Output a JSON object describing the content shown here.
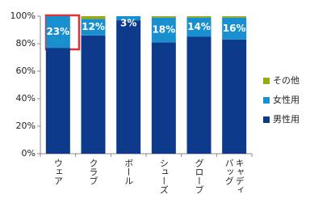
{
  "chart_data": {
    "type": "stacked_bar",
    "categories": [
      "ウェア",
      "クラブ",
      "ボール",
      "シューズ",
      "グローブ",
      "キャディバッグ"
    ],
    "series": [
      {
        "name": "男性用",
        "color": "#0d3a8a",
        "values": [
          77,
          86,
          97,
          81,
          85,
          83
        ]
      },
      {
        "name": "女性用",
        "color": "#1a8fd0",
        "values": [
          23,
          12,
          3,
          18,
          14,
          16
        ],
        "value_labels": [
          "23%",
          "12%",
          "3%",
          "18%",
          "14%",
          "16%"
        ]
      },
      {
        "name": "その他",
        "color": "#99aa11",
        "values": [
          0,
          2,
          0,
          1,
          1,
          1
        ]
      }
    ],
    "ylim": [
      0,
      100
    ],
    "yticks": [
      {
        "value": 0,
        "label": "0%"
      },
      {
        "value": 20,
        "label": "20%"
      },
      {
        "value": 40,
        "label": "40%"
      },
      {
        "value": 60,
        "label": "60%"
      },
      {
        "value": 80,
        "label": "80%"
      },
      {
        "value": 100,
        "label": "100%"
      }
    ],
    "grid": false,
    "legend": "right"
  }
}
